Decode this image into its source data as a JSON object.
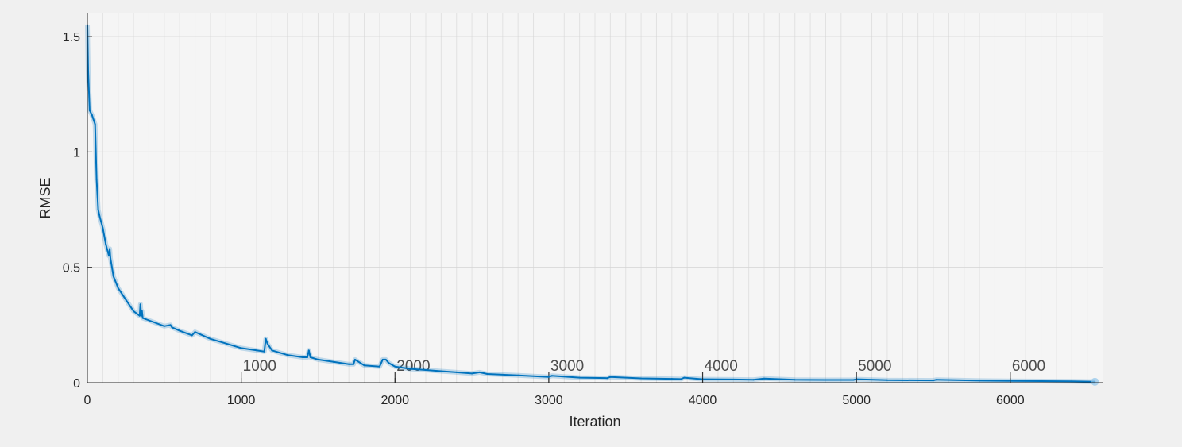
{
  "chart_data": {
    "type": "line",
    "xlabel": "Iteration",
    "ylabel": "RMSE",
    "xlim": [
      0,
      6600
    ],
    "ylim": [
      0,
      1.6
    ],
    "x_ticks": [
      0,
      1000,
      2000,
      3000,
      4000,
      5000,
      6000
    ],
    "x_tick_labels": [
      "0",
      "1000",
      "2000",
      "3000",
      "4000",
      "5000",
      "6000"
    ],
    "y_ticks": [
      0,
      0.5,
      1,
      1.5
    ],
    "y_tick_labels": [
      "0",
      "0.5",
      "1",
      "1.5"
    ],
    "grid": true,
    "epoch_markers": [
      {
        "x": 1000,
        "label": "1000"
      },
      {
        "x": 2000,
        "label": "2000"
      },
      {
        "x": 3000,
        "label": "3000"
      },
      {
        "x": 4000,
        "label": "4000"
      },
      {
        "x": 5000,
        "label": "5000"
      },
      {
        "x": 6000,
        "label": "6000"
      }
    ],
    "series": [
      {
        "color": "#0072bd",
        "x": [
          0,
          5,
          15,
          30,
          50,
          60,
          70,
          80,
          100,
          120,
          140,
          145,
          150,
          170,
          200,
          250,
          300,
          340,
          345,
          350,
          355,
          360,
          400,
          500,
          540,
          550,
          600,
          680,
          700,
          800,
          900,
          1000,
          1100,
          1150,
          1160,
          1170,
          1180,
          1200,
          1250,
          1300,
          1400,
          1430,
          1440,
          1450,
          1500,
          1600,
          1700,
          1730,
          1740,
          1800,
          1900,
          1920,
          1940,
          1960,
          2000,
          2100,
          2200,
          2300,
          2400,
          2500,
          2550,
          2600,
          2800,
          3000,
          3020,
          3200,
          3380,
          3400,
          3600,
          3800,
          3860,
          3880,
          4000,
          4200,
          4330,
          4400,
          4600,
          4800,
          4980,
          5000,
          5200,
          5500,
          5520,
          5800,
          6000,
          6200,
          6400,
          6550
        ],
        "y": [
          1.55,
          1.35,
          1.18,
          1.16,
          1.12,
          0.88,
          0.75,
          0.72,
          0.67,
          0.6,
          0.55,
          0.58,
          0.54,
          0.46,
          0.41,
          0.36,
          0.31,
          0.29,
          0.34,
          0.29,
          0.31,
          0.28,
          0.27,
          0.245,
          0.25,
          0.24,
          0.225,
          0.205,
          0.22,
          0.19,
          0.17,
          0.15,
          0.14,
          0.135,
          0.19,
          0.17,
          0.16,
          0.14,
          0.13,
          0.12,
          0.11,
          0.11,
          0.14,
          0.11,
          0.1,
          0.09,
          0.08,
          0.08,
          0.1,
          0.075,
          0.07,
          0.1,
          0.1,
          0.085,
          0.07,
          0.06,
          0.055,
          0.05,
          0.045,
          0.04,
          0.045,
          0.038,
          0.032,
          0.025,
          0.03,
          0.022,
          0.02,
          0.025,
          0.019,
          0.017,
          0.016,
          0.022,
          0.015,
          0.014,
          0.013,
          0.018,
          0.013,
          0.012,
          0.012,
          0.015,
          0.011,
          0.01,
          0.013,
          0.009,
          0.008,
          0.007,
          0.006,
          0.004
        ]
      }
    ]
  }
}
